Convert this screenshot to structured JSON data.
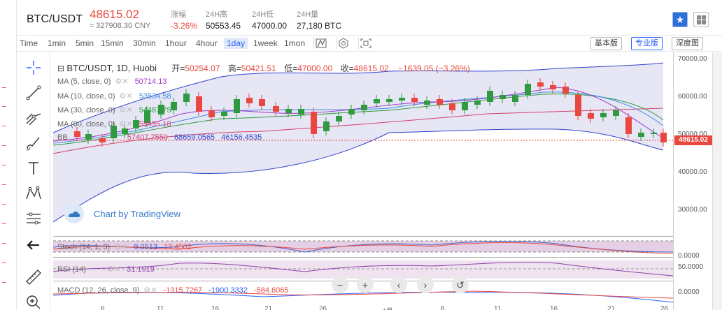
{
  "header": {
    "pair": "BTC/USDT",
    "price": "48615.02",
    "cny": "≈ 327908.30 CNY",
    "stats": [
      {
        "label": "涨幅",
        "value": "-3.26%",
        "color": "#e8483f"
      },
      {
        "label": "24H高",
        "value": "50553.45",
        "color": "#222"
      },
      {
        "label": "24H低",
        "value": "47000.00",
        "color": "#222"
      },
      {
        "label": "24H量",
        "value": "27,180 BTC",
        "color": "#222"
      }
    ]
  },
  "toolbar": {
    "intervals": [
      "Time",
      "1min",
      "5min",
      "15min",
      "30min",
      "1hour",
      "4hour",
      "1day",
      "1week",
      "1mon"
    ],
    "active": "1day",
    "modes": [
      "基本版",
      "专业版",
      "深度图"
    ],
    "active_mode": "专业版"
  },
  "tools": [
    "crosshair-icon",
    "trendline-icon",
    "pitchfork-icon",
    "brush-icon",
    "text-icon",
    "pattern-icon",
    "measure-icon",
    "back-arrow-icon",
    "ruler-icon",
    "zoom-icon"
  ],
  "legend": {
    "title": "BTC/USDT, 1D, Huobi",
    "ohlc": [
      {
        "k": "开=",
        "v": "50254.07"
      },
      {
        "k": "高=",
        "v": "50421.51"
      },
      {
        "k": "低=",
        "v": "47000.00"
      },
      {
        "k": "收=",
        "v": "48615.02"
      }
    ],
    "change": "−1639.05 (−3.26%)"
  },
  "indicators": [
    {
      "name": "MA (5, close, 0)",
      "value": "50714.13",
      "color": "#a333c8"
    },
    {
      "name": "MA (10, close, 0)",
      "value": "53534.58",
      "color": "#3b8fe0"
    },
    {
      "name": "MA (30, close, 0)",
      "value": "54487.75",
      "color": "#2f9a3f"
    },
    {
      "name": "MA (60, close, 0)",
      "value": "55455.18",
      "color": "#d53f6c"
    },
    {
      "name": "BB",
      "values": [
        "57407.7550",
        "68659.0565",
        "46156.4535"
      ],
      "colors": [
        "#d53f6c",
        "#3344cc",
        "#3344cc"
      ]
    }
  ],
  "price_axis": {
    "labels": [
      "70000.00",
      "60000.00",
      "50000.00",
      "40000.00",
      "30000.00"
    ],
    "last": "48615.02"
  },
  "watermark": "Chart by TradingView",
  "subpanes": {
    "stoch": {
      "name": "Stoch (14, 1, 3)",
      "values": [
        "9.0513",
        "13.4502"
      ],
      "axis": "0.0000"
    },
    "rsi": {
      "name": "RSI (14)",
      "values": [
        "31.1919"
      ],
      "axis": "50.0000"
    },
    "macd": {
      "name": "MACD (12, 26, close, 9)",
      "values": [
        "-1315.7267",
        "-1900.3332",
        "-584.6065"
      ],
      "axis": "0.0000"
    }
  },
  "time_axis": [
    "6",
    "11",
    "16",
    "21",
    "26",
    "4月",
    "6",
    "11",
    "16",
    "21",
    "26"
  ],
  "nav_buttons": [
    "−",
    "+",
    "‹",
    "›",
    "↺"
  ]
}
